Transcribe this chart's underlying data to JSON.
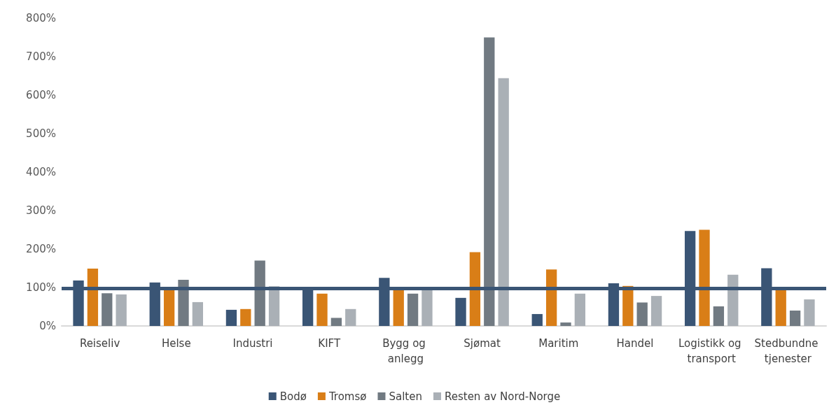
{
  "chart_data": {
    "type": "bar",
    "categories": [
      "Reiseliv",
      "Helse",
      "Industri",
      "KIFT",
      "Bygg og anlegg",
      "Sjømat",
      "Maritim",
      "Handel",
      "Logistikk og transport",
      "Stedbundne tjenester"
    ],
    "series": [
      {
        "name": "Bodø",
        "color": "#3a5575",
        "values": [
          118,
          113,
          42,
          96,
          125,
          73,
          31,
          111,
          247,
          150
        ]
      },
      {
        "name": "Tromsø",
        "color": "#d97e17",
        "values": [
          149,
          96,
          44,
          84,
          96,
          192,
          147,
          104,
          250,
          96
        ]
      },
      {
        "name": "Salten",
        "color": "#717a82",
        "values": [
          85,
          120,
          170,
          21,
          84,
          750,
          9,
          61,
          51,
          40
        ]
      },
      {
        "name": "Resten av Nord-Norge",
        "color": "#aab0b6",
        "values": [
          82,
          62,
          103,
          44,
          96,
          644,
          84,
          78,
          133,
          69
        ]
      }
    ],
    "ylim": [
      0,
      800
    ],
    "yticks": [
      {
        "value": 0,
        "label": "0%"
      },
      {
        "value": 100,
        "label": "100%"
      },
      {
        "value": 200,
        "label": "200%"
      },
      {
        "value": 300,
        "label": "300%"
      },
      {
        "value": 400,
        "label": "400%"
      },
      {
        "value": 500,
        "label": "500%"
      },
      {
        "value": 600,
        "label": "600%"
      },
      {
        "value": 700,
        "label": "700%"
      },
      {
        "value": 800,
        "label": "800%"
      }
    ],
    "ref_lines": [
      {
        "axis": "y",
        "value": 97,
        "color": "#3a5575"
      }
    ],
    "grid": false,
    "legend": "bottom"
  }
}
